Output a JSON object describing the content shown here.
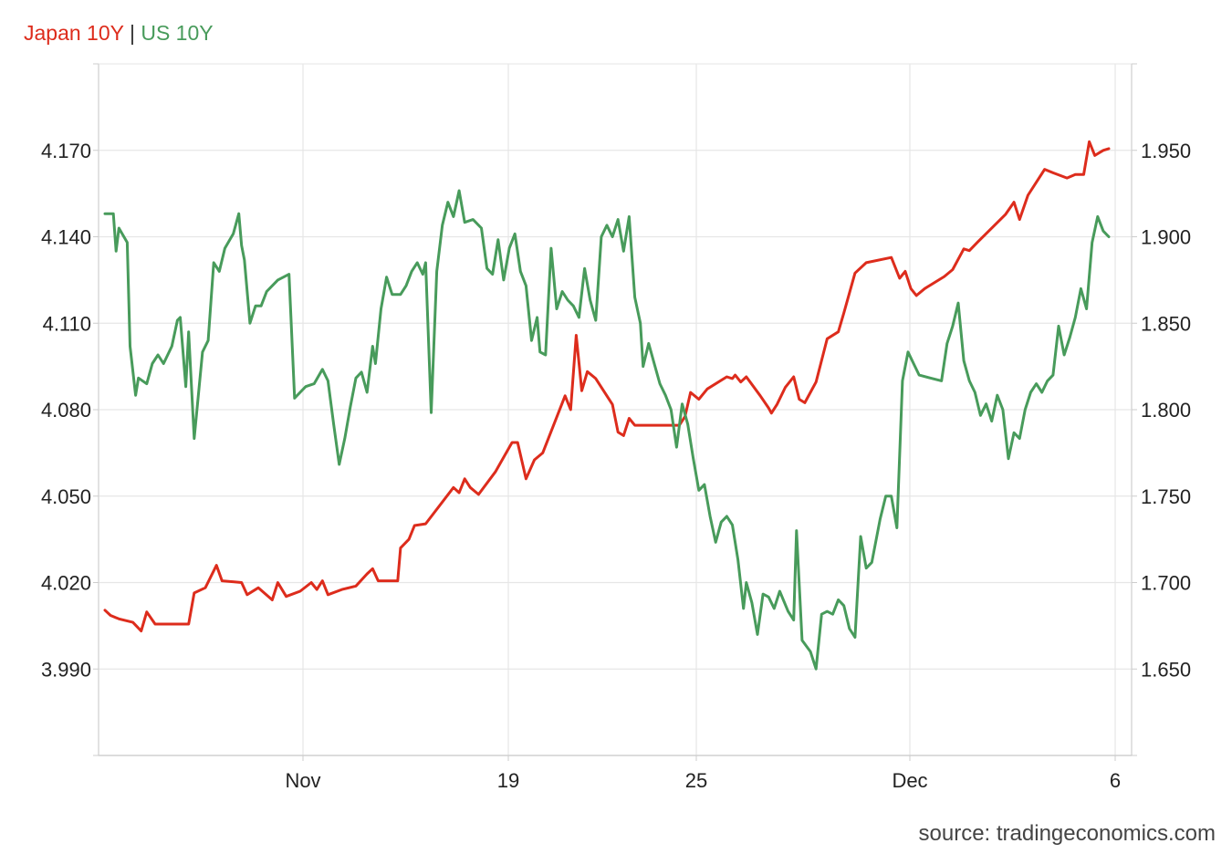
{
  "chart_data": {
    "type": "line",
    "title": "",
    "legend": {
      "placement": "top-left",
      "separator": "|"
    },
    "x_ticks": [
      "Nov",
      "19",
      "25",
      "Dec",
      "6"
    ],
    "y_left": {
      "ticks": [
        "4.170",
        "4.140",
        "4.110",
        "4.080",
        "4.050",
        "4.020",
        "3.990"
      ],
      "range": [
        3.96,
        4.2
      ]
    },
    "y_right": {
      "ticks": [
        "1.950",
        "1.900",
        "1.850",
        "1.800",
        "1.750",
        "1.700",
        "1.650"
      ],
      "range": [
        1.6,
        2.0
      ]
    },
    "grid": true,
    "series": [
      {
        "name": "Japan 10Y",
        "color": "#dd2c1c",
        "axis": "right",
        "points": [
          [
            0.0,
            1.684
          ],
          [
            0.2,
            1.681
          ],
          [
            0.5,
            1.679
          ],
          [
            1.0,
            1.677
          ],
          [
            1.3,
            1.672
          ],
          [
            1.5,
            1.683
          ],
          [
            1.8,
            1.676
          ],
          [
            2.3,
            1.676
          ],
          [
            3.0,
            1.676
          ],
          [
            3.2,
            1.694
          ],
          [
            3.6,
            1.697
          ],
          [
            4.0,
            1.71
          ],
          [
            4.2,
            1.701
          ],
          [
            4.9,
            1.7
          ],
          [
            5.1,
            1.693
          ],
          [
            5.5,
            1.697
          ],
          [
            6.0,
            1.69
          ],
          [
            6.2,
            1.7
          ],
          [
            6.5,
            1.692
          ],
          [
            7.0,
            1.695
          ],
          [
            7.4,
            1.7
          ],
          [
            7.6,
            1.696
          ],
          [
            7.8,
            1.701
          ],
          [
            8.0,
            1.693
          ],
          [
            8.5,
            1.696
          ],
          [
            9.0,
            1.698
          ],
          [
            9.4,
            1.705
          ],
          [
            9.6,
            1.708
          ],
          [
            9.8,
            1.701
          ],
          [
            10.5,
            1.701
          ],
          [
            10.6,
            1.72
          ],
          [
            10.9,
            1.725
          ],
          [
            11.1,
            1.733
          ],
          [
            11.5,
            1.734
          ],
          [
            12.5,
            1.755
          ],
          [
            12.7,
            1.752
          ],
          [
            12.9,
            1.76
          ],
          [
            13.1,
            1.755
          ],
          [
            13.4,
            1.751
          ],
          [
            14.0,
            1.764
          ],
          [
            14.6,
            1.781
          ],
          [
            14.8,
            1.781
          ],
          [
            15.1,
            1.76
          ],
          [
            15.4,
            1.771
          ],
          [
            15.7,
            1.775
          ],
          [
            16.5,
            1.808
          ],
          [
            16.7,
            1.8
          ],
          [
            16.9,
            1.843
          ],
          [
            17.1,
            1.811
          ],
          [
            17.3,
            1.822
          ],
          [
            17.6,
            1.818
          ],
          [
            18.2,
            1.803
          ],
          [
            18.4,
            1.787
          ],
          [
            18.6,
            1.785
          ],
          [
            18.8,
            1.795
          ],
          [
            19.0,
            1.791
          ],
          [
            20.6,
            1.791
          ],
          [
            20.8,
            1.796
          ],
          [
            21.0,
            1.81
          ],
          [
            21.3,
            1.806
          ],
          [
            21.6,
            1.812
          ],
          [
            22.3,
            1.819
          ],
          [
            22.5,
            1.818
          ],
          [
            22.6,
            1.82
          ],
          [
            22.8,
            1.816
          ],
          [
            23.0,
            1.819
          ],
          [
            23.5,
            1.808
          ],
          [
            23.8,
            1.801
          ],
          [
            23.9,
            1.798
          ],
          [
            24.1,
            1.803
          ],
          [
            24.4,
            1.813
          ],
          [
            24.7,
            1.819
          ],
          [
            24.9,
            1.806
          ],
          [
            25.1,
            1.804
          ],
          [
            25.5,
            1.816
          ],
          [
            25.9,
            1.841
          ],
          [
            26.3,
            1.845
          ],
          [
            26.5,
            1.856
          ],
          [
            26.9,
            1.879
          ],
          [
            27.3,
            1.885
          ],
          [
            28.2,
            1.888
          ],
          [
            28.5,
            1.876
          ],
          [
            28.7,
            1.88
          ],
          [
            28.9,
            1.87
          ],
          [
            29.1,
            1.866
          ],
          [
            29.4,
            1.87
          ],
          [
            30.1,
            1.877
          ],
          [
            30.4,
            1.881
          ],
          [
            30.8,
            1.893
          ],
          [
            31.0,
            1.892
          ],
          [
            31.3,
            1.897
          ],
          [
            32.3,
            1.913
          ],
          [
            32.6,
            1.92
          ],
          [
            32.8,
            1.91
          ],
          [
            33.1,
            1.924
          ],
          [
            33.7,
            1.939
          ],
          [
            34.0,
            1.937
          ],
          [
            34.5,
            1.934
          ],
          [
            34.8,
            1.936
          ],
          [
            35.1,
            1.936
          ],
          [
            35.3,
            1.955
          ],
          [
            35.5,
            1.947
          ],
          [
            35.8,
            1.95
          ],
          [
            36.0,
            1.951
          ]
        ]
      },
      {
        "name": "US 10Y",
        "color": "#489b5b",
        "axis": "left",
        "points": [
          [
            0.0,
            4.148
          ],
          [
            0.3,
            4.148
          ],
          [
            0.4,
            4.135
          ],
          [
            0.5,
            4.143
          ],
          [
            0.8,
            4.138
          ],
          [
            0.9,
            4.102
          ],
          [
            1.1,
            4.085
          ],
          [
            1.2,
            4.091
          ],
          [
            1.5,
            4.089
          ],
          [
            1.7,
            4.096
          ],
          [
            1.9,
            4.099
          ],
          [
            2.1,
            4.096
          ],
          [
            2.4,
            4.102
          ],
          [
            2.6,
            4.111
          ],
          [
            2.7,
            4.112
          ],
          [
            2.9,
            4.088
          ],
          [
            3.0,
            4.107
          ],
          [
            3.2,
            4.07
          ],
          [
            3.5,
            4.1
          ],
          [
            3.7,
            4.104
          ],
          [
            3.9,
            4.131
          ],
          [
            4.1,
            4.128
          ],
          [
            4.3,
            4.136
          ],
          [
            4.6,
            4.141
          ],
          [
            4.8,
            4.148
          ],
          [
            4.9,
            4.137
          ],
          [
            5.0,
            4.132
          ],
          [
            5.2,
            4.11
          ],
          [
            5.4,
            4.116
          ],
          [
            5.6,
            4.116
          ],
          [
            5.8,
            4.121
          ],
          [
            6.2,
            4.125
          ],
          [
            6.6,
            4.127
          ],
          [
            6.8,
            4.084
          ],
          [
            7.0,
            4.086
          ],
          [
            7.2,
            4.088
          ],
          [
            7.5,
            4.089
          ],
          [
            7.8,
            4.094
          ],
          [
            8.0,
            4.09
          ],
          [
            8.2,
            4.075
          ],
          [
            8.4,
            4.061
          ],
          [
            8.6,
            4.07
          ],
          [
            8.8,
            4.081
          ],
          [
            9.0,
            4.091
          ],
          [
            9.2,
            4.093
          ],
          [
            9.4,
            4.086
          ],
          [
            9.6,
            4.102
          ],
          [
            9.7,
            4.096
          ],
          [
            9.9,
            4.115
          ],
          [
            10.1,
            4.126
          ],
          [
            10.3,
            4.12
          ],
          [
            10.6,
            4.12
          ],
          [
            10.8,
            4.123
          ],
          [
            11.0,
            4.128
          ],
          [
            11.2,
            4.131
          ],
          [
            11.4,
            4.127
          ],
          [
            11.5,
            4.131
          ],
          [
            11.7,
            4.079
          ],
          [
            11.9,
            4.128
          ],
          [
            12.1,
            4.144
          ],
          [
            12.3,
            4.152
          ],
          [
            12.5,
            4.147
          ],
          [
            12.7,
            4.156
          ],
          [
            12.9,
            4.145
          ],
          [
            13.2,
            4.146
          ],
          [
            13.5,
            4.143
          ],
          [
            13.7,
            4.129
          ],
          [
            13.9,
            4.127
          ],
          [
            14.1,
            4.139
          ],
          [
            14.3,
            4.125
          ],
          [
            14.5,
            4.136
          ],
          [
            14.7,
            4.141
          ],
          [
            14.9,
            4.128
          ],
          [
            15.1,
            4.123
          ],
          [
            15.3,
            4.104
          ],
          [
            15.5,
            4.112
          ],
          [
            15.6,
            4.1
          ],
          [
            15.8,
            4.099
          ],
          [
            16.0,
            4.136
          ],
          [
            16.2,
            4.115
          ],
          [
            16.4,
            4.121
          ],
          [
            16.6,
            4.118
          ],
          [
            16.8,
            4.116
          ],
          [
            17.0,
            4.112
          ],
          [
            17.2,
            4.129
          ],
          [
            17.4,
            4.118
          ],
          [
            17.6,
            4.111
          ],
          [
            17.8,
            4.14
          ],
          [
            18.0,
            4.144
          ],
          [
            18.2,
            4.14
          ],
          [
            18.4,
            4.146
          ],
          [
            18.6,
            4.135
          ],
          [
            18.8,
            4.147
          ],
          [
            19.0,
            4.119
          ],
          [
            19.2,
            4.11
          ],
          [
            19.3,
            4.095
          ],
          [
            19.5,
            4.103
          ],
          [
            19.7,
            4.096
          ],
          [
            19.9,
            4.089
          ],
          [
            20.1,
            4.085
          ],
          [
            20.3,
            4.08
          ],
          [
            20.5,
            4.067
          ],
          [
            20.7,
            4.082
          ],
          [
            20.9,
            4.075
          ],
          [
            21.1,
            4.063
          ],
          [
            21.3,
            4.052
          ],
          [
            21.5,
            4.054
          ],
          [
            21.7,
            4.043
          ],
          [
            21.9,
            4.034
          ],
          [
            22.1,
            4.041
          ],
          [
            22.3,
            4.043
          ],
          [
            22.5,
            4.04
          ],
          [
            22.7,
            4.028
          ],
          [
            22.9,
            4.011
          ],
          [
            23.0,
            4.02
          ],
          [
            23.2,
            4.013
          ],
          [
            23.4,
            4.002
          ],
          [
            23.6,
            4.016
          ],
          [
            23.8,
            4.015
          ],
          [
            24.0,
            4.011
          ],
          [
            24.2,
            4.017
          ],
          [
            24.5,
            4.01
          ],
          [
            24.7,
            4.007
          ],
          [
            24.8,
            4.038
          ],
          [
            25.0,
            4.0
          ],
          [
            25.3,
            3.996
          ],
          [
            25.5,
            3.99
          ],
          [
            25.7,
            4.009
          ],
          [
            25.9,
            4.01
          ],
          [
            26.1,
            4.009
          ],
          [
            26.3,
            4.014
          ],
          [
            26.5,
            4.012
          ],
          [
            26.7,
            4.004
          ],
          [
            26.9,
            4.001
          ],
          [
            27.1,
            4.036
          ],
          [
            27.3,
            4.025
          ],
          [
            27.5,
            4.027
          ],
          [
            27.8,
            4.042
          ],
          [
            28.0,
            4.05
          ],
          [
            28.2,
            4.05
          ],
          [
            28.4,
            4.039
          ],
          [
            28.6,
            4.09
          ],
          [
            28.8,
            4.1
          ],
          [
            29.0,
            4.096
          ],
          [
            29.2,
            4.092
          ],
          [
            29.6,
            4.091
          ],
          [
            30.0,
            4.09
          ],
          [
            30.2,
            4.103
          ],
          [
            30.4,
            4.109
          ],
          [
            30.6,
            4.117
          ],
          [
            30.8,
            4.097
          ],
          [
            31.0,
            4.09
          ],
          [
            31.2,
            4.086
          ],
          [
            31.4,
            4.078
          ],
          [
            31.6,
            4.082
          ],
          [
            31.8,
            4.076
          ],
          [
            32.0,
            4.085
          ],
          [
            32.2,
            4.08
          ],
          [
            32.4,
            4.063
          ],
          [
            32.6,
            4.072
          ],
          [
            32.8,
            4.07
          ],
          [
            33.0,
            4.08
          ],
          [
            33.2,
            4.086
          ],
          [
            33.4,
            4.089
          ],
          [
            33.6,
            4.086
          ],
          [
            33.8,
            4.09
          ],
          [
            34.0,
            4.092
          ],
          [
            34.2,
            4.109
          ],
          [
            34.4,
            4.099
          ],
          [
            34.6,
            4.105
          ],
          [
            34.8,
            4.112
          ],
          [
            35.0,
            4.122
          ],
          [
            35.2,
            4.115
          ],
          [
            35.4,
            4.138
          ],
          [
            35.6,
            4.147
          ],
          [
            35.8,
            4.142
          ],
          [
            36.0,
            4.14
          ]
        ]
      }
    ]
  },
  "footer": {
    "source": "source: tradingeconomics.com"
  }
}
